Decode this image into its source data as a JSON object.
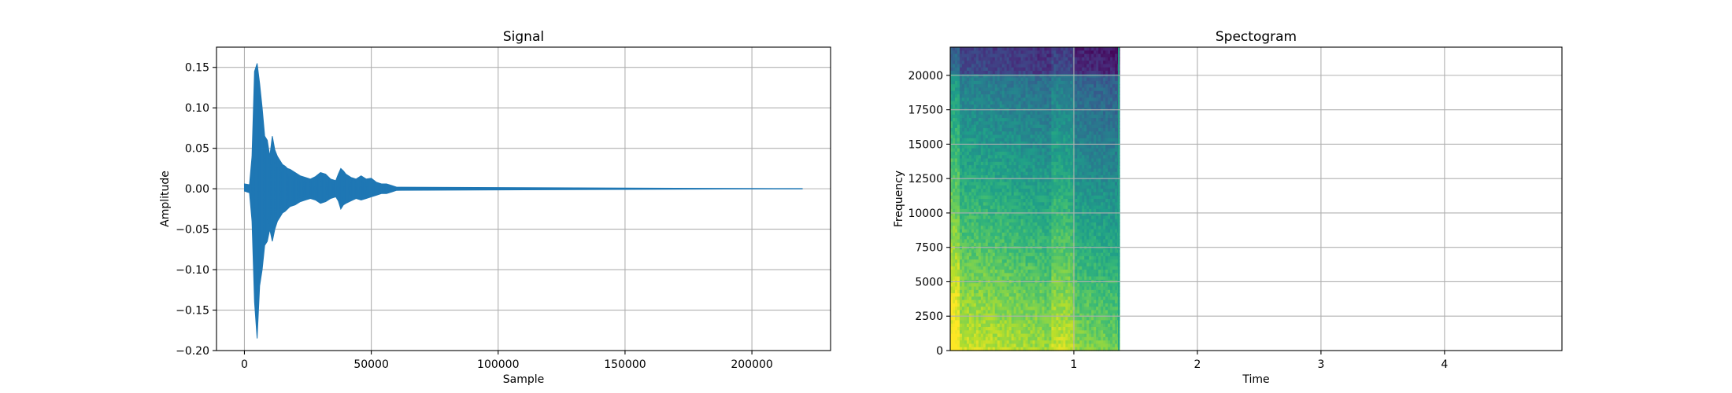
{
  "chart_data": [
    {
      "type": "line",
      "title": "Signal",
      "xlabel": "Sample",
      "ylabel": "Amplitude",
      "xlim": [
        -11000,
        231000
      ],
      "ylim": [
        -0.2,
        0.175
      ],
      "xticks": [
        0,
        50000,
        100000,
        150000,
        200000
      ],
      "xtick_labels": [
        "0",
        "50000",
        "100000",
        "150000",
        "200000"
      ],
      "yticks": [
        -0.2,
        -0.15,
        -0.1,
        -0.05,
        0.0,
        0.05,
        0.1,
        0.15
      ],
      "ytick_labels": [
        "−0.20",
        "−0.15",
        "−0.10",
        "−0.05",
        "0.00",
        "0.05",
        "0.10",
        "0.15"
      ],
      "grid": true,
      "color": "#1f77b4",
      "series": [
        {
          "x": [
            0,
            2000,
            3000,
            4000,
            5000,
            6000,
            7000,
            8000,
            9000,
            10000,
            11000,
            12000,
            13000,
            14000,
            15000,
            16000,
            17000,
            18000,
            20000,
            22000,
            24000,
            26000,
            28000,
            30000,
            32000,
            34000,
            36000,
            37000,
            38000,
            39000,
            40000,
            42000,
            44000,
            46000,
            48000,
            50000,
            52000,
            54000,
            56000,
            58000,
            60000,
            220000
          ],
          "upper": [
            0.006,
            0.005,
            0.04,
            0.145,
            0.155,
            0.13,
            0.1,
            0.065,
            0.06,
            0.04,
            0.065,
            0.048,
            0.04,
            0.035,
            0.03,
            0.028,
            0.025,
            0.024,
            0.02,
            0.016,
            0.014,
            0.012,
            0.015,
            0.02,
            0.018,
            0.012,
            0.01,
            0.018,
            0.025,
            0.022,
            0.018,
            0.014,
            0.012,
            0.016,
            0.012,
            0.013,
            0.008,
            0.006,
            0.006,
            0.004,
            0.002,
            0.0
          ],
          "lower": [
            -0.003,
            -0.005,
            -0.04,
            -0.14,
            -0.185,
            -0.12,
            -0.1,
            -0.07,
            -0.065,
            -0.05,
            -0.065,
            -0.05,
            -0.04,
            -0.035,
            -0.03,
            -0.028,
            -0.025,
            -0.022,
            -0.02,
            -0.016,
            -0.014,
            -0.012,
            -0.014,
            -0.018,
            -0.016,
            -0.012,
            -0.01,
            -0.015,
            -0.025,
            -0.02,
            -0.018,
            -0.015,
            -0.012,
            -0.014,
            -0.012,
            -0.01,
            -0.008,
            -0.006,
            -0.006,
            -0.004,
            -0.002,
            0.0
          ]
        }
      ]
    },
    {
      "type": "heatmap",
      "title": "Spectogram",
      "xlabel": "Time",
      "ylabel": "Frequency",
      "xlim": [
        0.0,
        4.95
      ],
      "ylim": [
        0,
        22050
      ],
      "data_extent_x": [
        0.0,
        1.37
      ],
      "xticks": [
        1,
        2,
        3,
        4
      ],
      "xtick_labels": [
        "1",
        "2",
        "3",
        "4"
      ],
      "yticks": [
        0,
        2500,
        5000,
        7500,
        10000,
        12500,
        15000,
        17500,
        20000
      ],
      "ytick_labels": [
        "0",
        "2500",
        "5000",
        "7500",
        "10000",
        "12500",
        "15000",
        "17500",
        "20000"
      ],
      "grid": true,
      "colormap": "viridis",
      "band_edge_color": "#21a585"
    }
  ]
}
